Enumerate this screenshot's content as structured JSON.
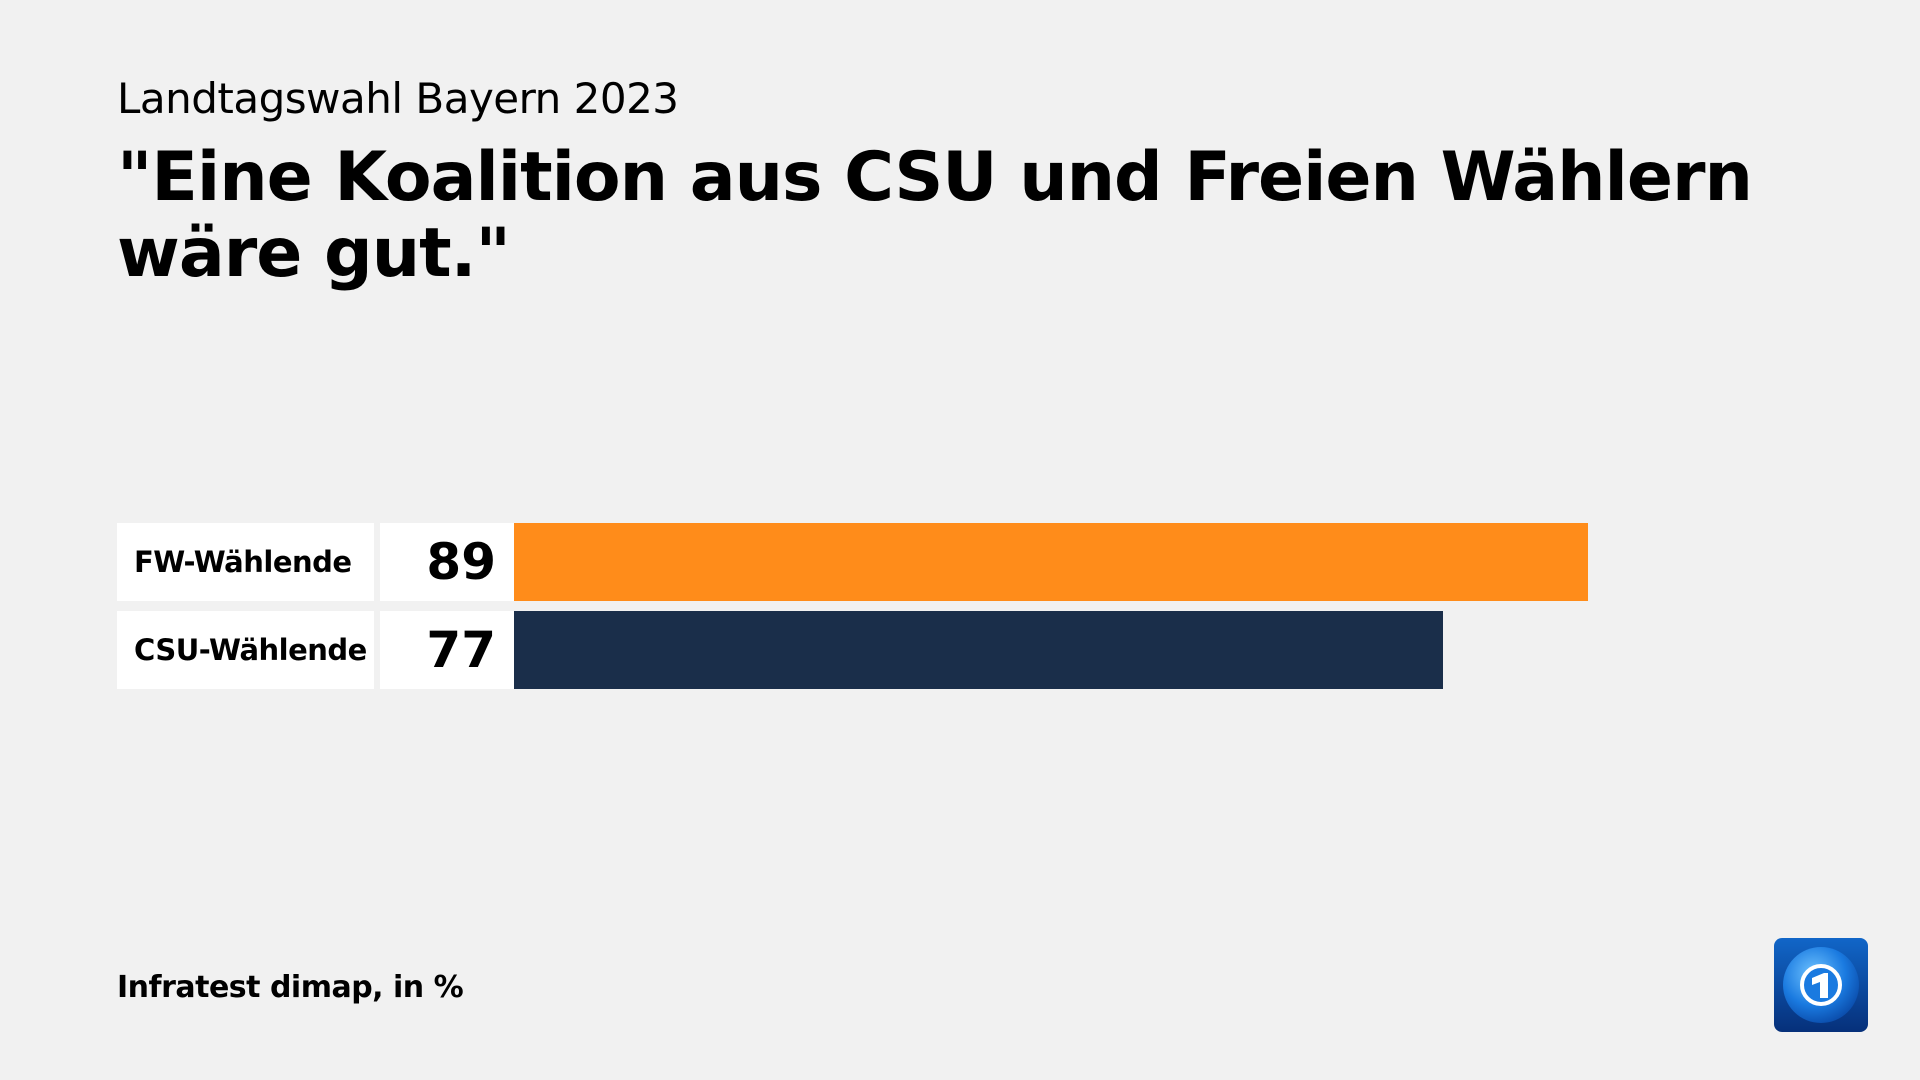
{
  "header": {
    "subtitle": "Landtagswahl Bayern 2023",
    "title": "\"Eine Koalition aus CSU und Freien Wählern wäre gut.\""
  },
  "chart_data": {
    "type": "bar",
    "orientation": "horizontal",
    "categories": [
      "FW-Wählende",
      "CSU-Wählende"
    ],
    "values": [
      89,
      77
    ],
    "colors": [
      "#ff8c1a",
      "#1a2e4a"
    ],
    "value_labels": [
      "89",
      "77"
    ],
    "xlim": [
      0,
      100
    ],
    "unit": "%"
  },
  "footer": {
    "source": "Infratest dimap, in %"
  },
  "logo": {
    "icon": "tagesschau-globe-1-logo"
  }
}
